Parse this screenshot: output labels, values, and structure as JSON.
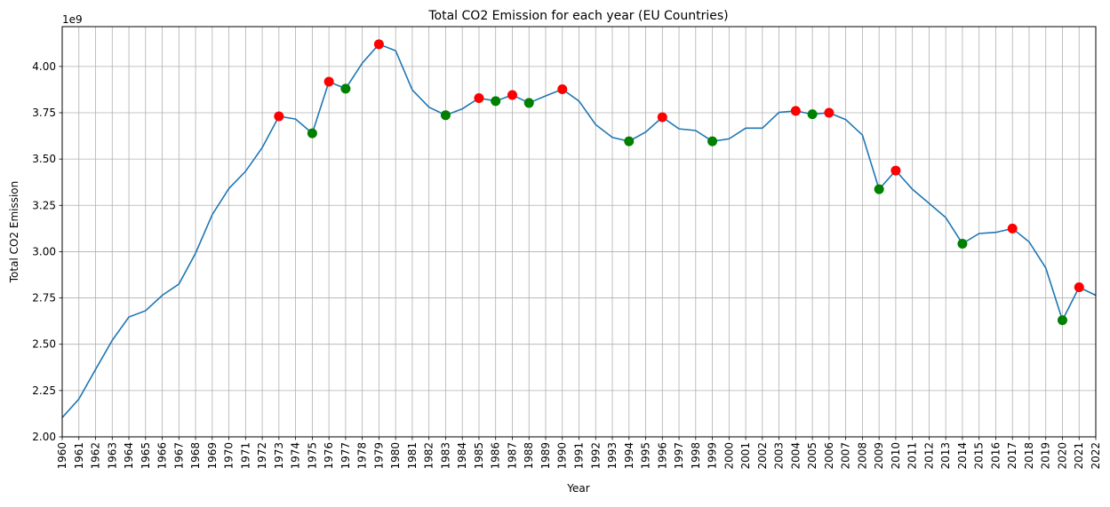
{
  "chart_data": {
    "type": "line",
    "title": "Total CO2 Emission for each year (EU Countries)",
    "xlabel": "Year",
    "ylabel": "Total CO2 Emission",
    "y_offset_label": "1e9",
    "xlim": [
      1960,
      2022
    ],
    "ylim": [
      2.0,
      4.215
    ],
    "y_ticks": [
      "2.00",
      "2.25",
      "2.50",
      "2.75",
      "3.00",
      "3.25",
      "3.50",
      "3.75",
      "4.00"
    ],
    "grid": true,
    "line_color": "#1f77b4",
    "x": [
      1960,
      1961,
      1962,
      1963,
      1964,
      1965,
      1966,
      1967,
      1968,
      1969,
      1970,
      1971,
      1972,
      1973,
      1974,
      1975,
      1976,
      1977,
      1978,
      1979,
      1980,
      1981,
      1982,
      1983,
      1984,
      1985,
      1986,
      1987,
      1988,
      1989,
      1990,
      1991,
      1992,
      1993,
      1994,
      1995,
      1996,
      1997,
      1998,
      1999,
      2000,
      2001,
      2002,
      2003,
      2004,
      2005,
      2006,
      2007,
      2008,
      2009,
      2010,
      2011,
      2012,
      2013,
      2014,
      2015,
      2016,
      2017,
      2018,
      2019,
      2020,
      2021,
      2022
    ],
    "y": [
      2.104,
      2.204,
      2.364,
      2.521,
      2.647,
      2.681,
      2.764,
      2.825,
      2.992,
      3.2,
      3.341,
      3.434,
      3.562,
      3.731,
      3.716,
      3.639,
      3.918,
      3.88,
      4.018,
      4.12,
      4.085,
      3.873,
      3.78,
      3.737,
      3.771,
      3.829,
      3.813,
      3.846,
      3.803,
      3.841,
      3.877,
      3.813,
      3.686,
      3.617,
      3.596,
      3.646,
      3.726,
      3.663,
      3.654,
      3.596,
      3.609,
      3.667,
      3.667,
      3.752,
      3.76,
      3.742,
      3.75,
      3.713,
      3.63,
      3.337,
      3.438,
      3.337,
      3.261,
      3.184,
      3.043,
      3.098,
      3.104,
      3.125,
      3.053,
      2.912,
      2.63,
      2.808,
      2.764
    ],
    "red_marker_years": [
      1973,
      1976,
      1979,
      1985,
      1987,
      1990,
      1996,
      2004,
      2006,
      2010,
      2017,
      2021
    ],
    "green_marker_years": [
      1975,
      1977,
      1983,
      1986,
      1988,
      1994,
      1999,
      2005,
      2009,
      2014,
      2020
    ],
    "red_color": "#ff0000",
    "green_color": "#008000"
  }
}
